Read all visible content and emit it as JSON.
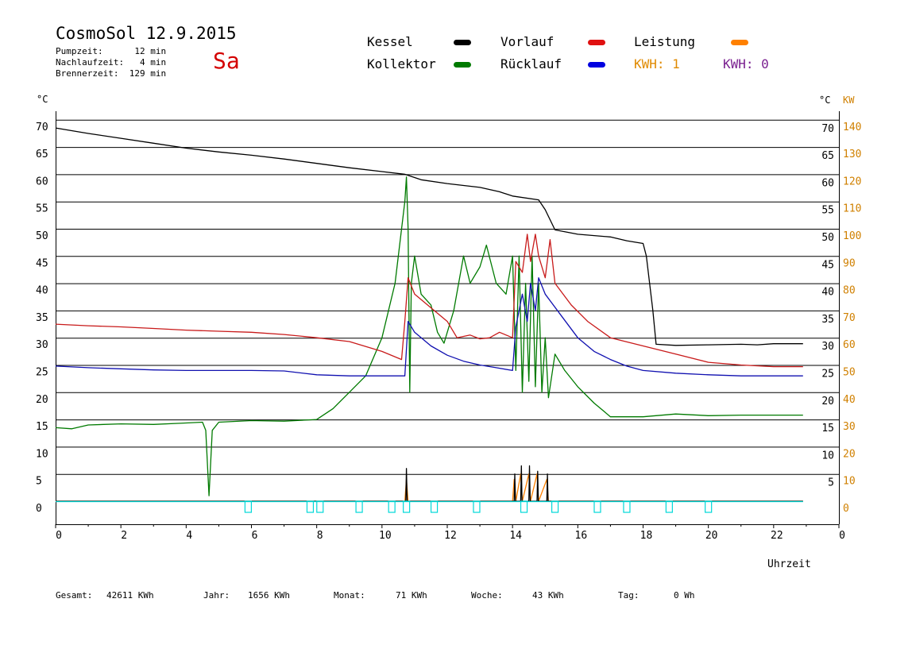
{
  "header": {
    "title": "CosmoSol 12.9.2015",
    "day": "Sa",
    "pumpzeit": "Pumpzeit:      12 min",
    "nachlaufzeit": "Nachlaufzeit:   4 min",
    "brennerzeit": "Brennerzeit:  129 min"
  },
  "legend": {
    "kessel": "Kessel",
    "kollektor": "Kollektor",
    "vorlauf": "Vorlauf",
    "ruecklauf": "Rücklauf",
    "leistung": "Leistung",
    "kwh1": "KWH: 1",
    "kwh2": "KWH: 0"
  },
  "footer": {
    "gesamt_label": "Gesamt:",
    "gesamt_value": "42611 KWh",
    "jahr_label": "Jahr:",
    "jahr_value": "1656 KWh",
    "monat_label": "Monat:",
    "monat_value": "71 KWh",
    "woche_label": "Woche:",
    "woche_value": "43 KWh",
    "tag_label": "Tag:",
    "tag_value": "0 Wh"
  },
  "colors": {
    "kessel": "#000000",
    "kollektor": "#007a00",
    "vorlauf": "#c81a1a",
    "ruecklauf": "#1010b0",
    "leistung": "#ff8000",
    "kwh2": "#7a2090",
    "axis_right_kw": "#d08000",
    "pump": "#00d8d8"
  },
  "chart_data": {
    "type": "line",
    "xlabel": "Uhrzeit",
    "ylabel_left": "°C",
    "ylabel_right": "°C",
    "ylabel_right2": "KW",
    "xlim": [
      0,
      24
    ],
    "ylim": [
      0,
      70
    ],
    "x_ticks": [
      "0",
      "2",
      "4",
      "6",
      "8",
      "10",
      "12",
      "14",
      "16",
      "18",
      "20",
      "22",
      "0"
    ],
    "y_ticks_left": [
      "0",
      "5",
      "10",
      "15",
      "20",
      "25",
      "30",
      "35",
      "40",
      "45",
      "50",
      "55",
      "60",
      "65",
      "70"
    ],
    "y_ticks_right": [
      "5",
      "10",
      "15",
      "20",
      "25",
      "30",
      "35",
      "40",
      "45",
      "50",
      "55",
      "60",
      "65",
      "70"
    ],
    "y_ticks_kw": [
      "0",
      "10",
      "20",
      "30",
      "40",
      "50",
      "60",
      "70",
      "80",
      "90",
      "100",
      "110",
      "120",
      "130",
      "140"
    ],
    "series": [
      {
        "name": "Kessel",
        "color": "#000000",
        "points": [
          [
            0,
            68.5
          ],
          [
            1,
            67.5
          ],
          [
            2,
            66.6
          ],
          [
            3,
            65.7
          ],
          [
            4,
            64.8
          ],
          [
            5,
            64.1
          ],
          [
            6,
            63.5
          ],
          [
            7,
            62.8
          ],
          [
            8,
            62.0
          ],
          [
            9,
            61.2
          ],
          [
            10,
            60.5
          ],
          [
            10.7,
            60.0
          ],
          [
            11.2,
            59.0
          ],
          [
            12,
            58.3
          ],
          [
            13,
            57.6
          ],
          [
            13.6,
            56.8
          ],
          [
            14,
            56.0
          ],
          [
            14.8,
            55.3
          ],
          [
            15.0,
            53.5
          ],
          [
            15.3,
            49.8
          ],
          [
            16,
            49.0
          ],
          [
            17,
            48.5
          ],
          [
            17.5,
            47.8
          ],
          [
            18.0,
            47.3
          ],
          [
            18.1,
            45.0
          ],
          [
            18.3,
            35.0
          ],
          [
            18.4,
            28.8
          ],
          [
            19,
            28.6
          ],
          [
            20,
            28.7
          ],
          [
            21,
            28.8
          ],
          [
            21.5,
            28.7
          ],
          [
            22,
            28.9
          ],
          [
            22.9,
            28.9
          ]
        ]
      },
      {
        "name": "Kollektor",
        "color": "#007a00",
        "points": [
          [
            0,
            13.5
          ],
          [
            0.5,
            13.3
          ],
          [
            1,
            14
          ],
          [
            2,
            14.2
          ],
          [
            3,
            14.1
          ],
          [
            3.8,
            14.3
          ],
          [
            4.5,
            14.5
          ],
          [
            4.6,
            13
          ],
          [
            4.7,
            1
          ],
          [
            4.8,
            13
          ],
          [
            5,
            14.5
          ],
          [
            6,
            14.8
          ],
          [
            7,
            14.7
          ],
          [
            8,
            15
          ],
          [
            8.5,
            17
          ],
          [
            9,
            20
          ],
          [
            9.5,
            23
          ],
          [
            10,
            30
          ],
          [
            10.4,
            40
          ],
          [
            10.7,
            55
          ],
          [
            10.75,
            59.5
          ],
          [
            10.8,
            50
          ],
          [
            10.85,
            20
          ],
          [
            10.9,
            40
          ],
          [
            11.0,
            45
          ],
          [
            11.2,
            38
          ],
          [
            11.5,
            36
          ],
          [
            11.7,
            31
          ],
          [
            11.9,
            29
          ],
          [
            12.2,
            35
          ],
          [
            12.5,
            45
          ],
          [
            12.7,
            40
          ],
          [
            13.0,
            43
          ],
          [
            13.2,
            47
          ],
          [
            13.5,
            40
          ],
          [
            13.8,
            38
          ],
          [
            14.0,
            45
          ],
          [
            14.1,
            24
          ],
          [
            14.2,
            45
          ],
          [
            14.3,
            20
          ],
          [
            14.4,
            40
          ],
          [
            14.5,
            22
          ],
          [
            14.6,
            45
          ],
          [
            14.7,
            21
          ],
          [
            14.8,
            40
          ],
          [
            14.9,
            20
          ],
          [
            15.0,
            30
          ],
          [
            15.1,
            19
          ],
          [
            15.3,
            27
          ],
          [
            15.6,
            24
          ],
          [
            16,
            21
          ],
          [
            16.5,
            18
          ],
          [
            16.8,
            16.5
          ],
          [
            17,
            15.5
          ],
          [
            18,
            15.5
          ],
          [
            19,
            16.0
          ],
          [
            20,
            15.7
          ],
          [
            21,
            15.8
          ],
          [
            22,
            15.8
          ],
          [
            22.9,
            15.8
          ]
        ]
      },
      {
        "name": "Vorlauf",
        "color": "#c81a1a",
        "points": [
          [
            0,
            32.5
          ],
          [
            1,
            32.2
          ],
          [
            2,
            32.0
          ],
          [
            3,
            31.7
          ],
          [
            4,
            31.4
          ],
          [
            5,
            31.2
          ],
          [
            6,
            31.0
          ],
          [
            7,
            30.6
          ],
          [
            8,
            30.0
          ],
          [
            9,
            29.3
          ],
          [
            10,
            27.5
          ],
          [
            10.6,
            26
          ],
          [
            10.7,
            33
          ],
          [
            10.8,
            41
          ],
          [
            11.0,
            38
          ],
          [
            11.5,
            35.5
          ],
          [
            12.0,
            33
          ],
          [
            12.3,
            30
          ],
          [
            12.7,
            30.5
          ],
          [
            13.0,
            29.8
          ],
          [
            13.3,
            30
          ],
          [
            13.6,
            31
          ],
          [
            14.0,
            30
          ],
          [
            14.1,
            44
          ],
          [
            14.3,
            42
          ],
          [
            14.45,
            49
          ],
          [
            14.55,
            44
          ],
          [
            14.7,
            49
          ],
          [
            14.8,
            45
          ],
          [
            15.0,
            41
          ],
          [
            15.15,
            48
          ],
          [
            15.3,
            40
          ],
          [
            15.8,
            36
          ],
          [
            16.3,
            33
          ],
          [
            17,
            30
          ],
          [
            18,
            28.5
          ],
          [
            19,
            27
          ],
          [
            20,
            25.5
          ],
          [
            21,
            25
          ],
          [
            22,
            24.7
          ],
          [
            22.9,
            24.7
          ]
        ]
      },
      {
        "name": "Rücklauf",
        "color": "#1010b0",
        "points": [
          [
            0,
            24.8
          ],
          [
            1,
            24.5
          ],
          [
            2,
            24.3
          ],
          [
            3,
            24.1
          ],
          [
            4,
            24.0
          ],
          [
            5,
            24.0
          ],
          [
            6,
            24.0
          ],
          [
            7,
            23.9
          ],
          [
            8,
            23.2
          ],
          [
            9,
            23.0
          ],
          [
            10,
            23.0
          ],
          [
            10.7,
            23.0
          ],
          [
            10.8,
            33
          ],
          [
            11.0,
            31
          ],
          [
            11.5,
            28.5
          ],
          [
            12,
            26.8
          ],
          [
            12.5,
            25.7
          ],
          [
            13,
            25.0
          ],
          [
            13.5,
            24.5
          ],
          [
            14,
            24.0
          ],
          [
            14.1,
            32
          ],
          [
            14.3,
            38
          ],
          [
            14.45,
            33
          ],
          [
            14.55,
            40
          ],
          [
            14.7,
            35
          ],
          [
            14.8,
            41
          ],
          [
            15.0,
            38
          ],
          [
            15.5,
            34
          ],
          [
            16,
            30
          ],
          [
            16.5,
            27.5
          ],
          [
            17,
            26
          ],
          [
            17.5,
            24.8
          ],
          [
            18,
            24
          ],
          [
            19,
            23.5
          ],
          [
            20,
            23.2
          ],
          [
            21,
            23.0
          ],
          [
            22,
            23.0
          ],
          [
            22.9,
            23.0
          ]
        ]
      },
      {
        "name": "Leistung",
        "color": "#ff8000",
        "points": [
          [
            0,
            0
          ],
          [
            10.7,
            0
          ],
          [
            10.75,
            4
          ],
          [
            10.8,
            0
          ],
          [
            14.0,
            0
          ],
          [
            14.05,
            4
          ],
          [
            14.1,
            0
          ],
          [
            14.25,
            5
          ],
          [
            14.3,
            0
          ],
          [
            14.5,
            5
          ],
          [
            14.55,
            0
          ],
          [
            14.75,
            5
          ],
          [
            14.8,
            0
          ],
          [
            15.05,
            4
          ],
          [
            15.1,
            0
          ],
          [
            22.9,
            0
          ]
        ]
      },
      {
        "name": "Brenner",
        "color": "#000000",
        "points": [
          [
            0,
            0
          ],
          [
            10.73,
            0
          ],
          [
            10.75,
            6
          ],
          [
            10.77,
            0
          ],
          [
            14.05,
            0
          ],
          [
            14.07,
            5
          ],
          [
            14.09,
            0
          ],
          [
            14.25,
            0
          ],
          [
            14.27,
            6.5
          ],
          [
            14.29,
            0
          ],
          [
            14.5,
            0
          ],
          [
            14.52,
            6.5
          ],
          [
            14.54,
            0
          ],
          [
            14.75,
            0
          ],
          [
            14.77,
            5.5
          ],
          [
            14.79,
            0
          ],
          [
            15.05,
            0
          ],
          [
            15.07,
            5
          ],
          [
            15.09,
            0
          ],
          [
            22.9,
            0
          ]
        ]
      }
    ],
    "pump_markers": [
      5.9,
      7.8,
      8.1,
      9.3,
      10.3,
      10.75,
      11.6,
      12.9,
      14.35,
      15.3,
      16.6,
      17.5,
      18.8,
      20.0
    ]
  }
}
